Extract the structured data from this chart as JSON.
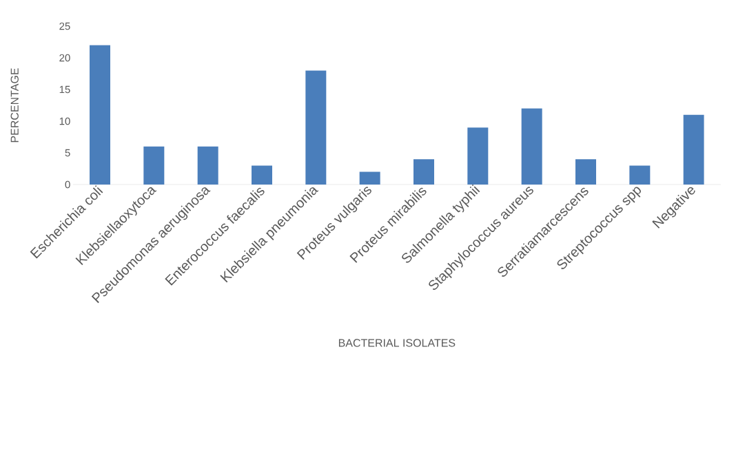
{
  "chart_data": {
    "type": "bar",
    "xlabel": "BACTERIAL ISOLATES",
    "ylabel": "PERCENTAGE",
    "categories": [
      "Escherichia coli",
      "Klebsiellaoxytoca",
      "Pseudomonas aeruginosa",
      "Enterococcus faecalis",
      "Klebsiella pneumonia",
      "Proteus vulgaris",
      "Proteus mirabilis",
      "Salmonella typhii",
      "Staphylococcus aureus",
      "Serratiamarcescens",
      "Streptococcus spp",
      "Negative"
    ],
    "values": [
      22,
      6,
      6,
      3,
      18,
      2,
      4,
      9,
      12,
      4,
      3,
      11
    ],
    "color": "#4a7ebb",
    "ylim": [
      0,
      25
    ],
    "yticks": [
      0,
      5,
      10,
      15,
      20,
      25
    ]
  }
}
